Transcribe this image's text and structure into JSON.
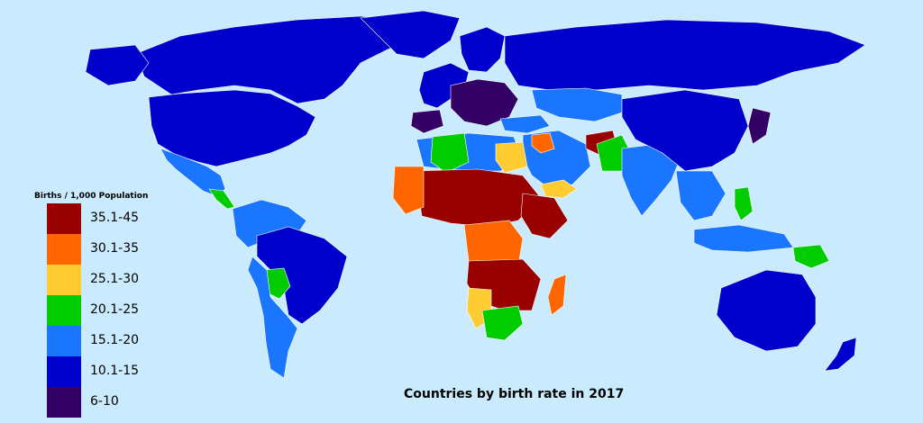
{
  "map": {
    "title": "Countries by birth rate in 2017",
    "legend_title": "Births / 1,000 Population",
    "legend": [
      {
        "label": "35.1-45",
        "color": "#990000"
      },
      {
        "label": "30.1-35",
        "color": "#ff6600"
      },
      {
        "label": "25.1-30",
        "color": "#ffcc33"
      },
      {
        "label": "20.1-25",
        "color": "#00cc00"
      },
      {
        "label": "15.1-20",
        "color": "#1a75ff"
      },
      {
        "label": "10.1-15",
        "color": "#0000cc"
      },
      {
        "label": "6-10",
        "color": "#330066"
      }
    ],
    "ocean_color": "#c9ebfd"
  }
}
